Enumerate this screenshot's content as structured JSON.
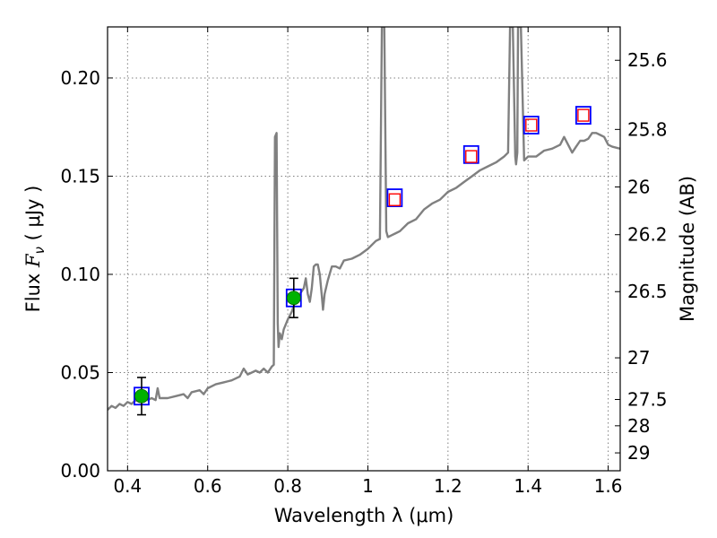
{
  "chart_data": {
    "type": "line",
    "xlabel": "Wavelength  λ (μm)",
    "ylabel": "Flux  F_ν  ( μJy )",
    "ylabel_parts": {
      "prefix": "Flux  ",
      "symbol": "F",
      "subscript": "ν",
      "unit": "  ( μJy )"
    },
    "y2label": "Magnitude (AB)",
    "xlim": [
      0.35,
      1.63
    ],
    "ylim": [
      0.0,
      0.226
    ],
    "grid": true,
    "x_ticks": [
      {
        "value": 0.4,
        "label": "0.4"
      },
      {
        "value": 0.6,
        "label": "0.6"
      },
      {
        "value": 0.8,
        "label": "0.8"
      },
      {
        "value": 1.0,
        "label": "1"
      },
      {
        "value": 1.2,
        "label": "1.2"
      },
      {
        "value": 1.4,
        "label": "1.4"
      },
      {
        "value": 1.6,
        "label": "1.6"
      }
    ],
    "y_ticks": [
      {
        "value": 0.0,
        "label": "0.00"
      },
      {
        "value": 0.05,
        "label": "0.05"
      },
      {
        "value": 0.1,
        "label": "0.10"
      },
      {
        "value": 0.15,
        "label": "0.15"
      },
      {
        "value": 0.2,
        "label": "0.20"
      }
    ],
    "y2_ticks": [
      {
        "flux": 0.209,
        "label": "25.6"
      },
      {
        "flux": 0.1738,
        "label": "25.8"
      },
      {
        "flux": 0.1445,
        "label": "26"
      },
      {
        "flux": 0.1202,
        "label": "26.2"
      },
      {
        "flux": 0.0912,
        "label": "26.5"
      },
      {
        "flux": 0.0575,
        "label": "27"
      },
      {
        "flux": 0.0363,
        "label": "27.5"
      },
      {
        "flux": 0.0229,
        "label": "28"
      },
      {
        "flux": 0.0091,
        "label": "29"
      }
    ],
    "colors": {
      "spectrum": "#808080",
      "box": "#0000ff",
      "inner_box": "#ff0000",
      "detection": "#00b200",
      "errorbar": "#000000",
      "grid": "#7f7f7f"
    },
    "series": [
      {
        "kind": "spectrum",
        "points": [
          [
            0.35,
            0.031
          ],
          [
            0.36,
            0.033
          ],
          [
            0.37,
            0.032
          ],
          [
            0.38,
            0.034
          ],
          [
            0.39,
            0.033
          ],
          [
            0.4,
            0.035
          ],
          [
            0.41,
            0.034
          ],
          [
            0.42,
            0.036
          ],
          [
            0.43,
            0.035
          ],
          [
            0.44,
            0.037
          ],
          [
            0.45,
            0.036
          ],
          [
            0.46,
            0.037
          ],
          [
            0.47,
            0.036
          ],
          [
            0.475,
            0.042
          ],
          [
            0.48,
            0.037
          ],
          [
            0.5,
            0.037
          ],
          [
            0.52,
            0.038
          ],
          [
            0.54,
            0.039
          ],
          [
            0.55,
            0.037
          ],
          [
            0.56,
            0.04
          ],
          [
            0.58,
            0.041
          ],
          [
            0.59,
            0.039
          ],
          [
            0.6,
            0.042
          ],
          [
            0.62,
            0.044
          ],
          [
            0.64,
            0.045
          ],
          [
            0.66,
            0.046
          ],
          [
            0.68,
            0.048
          ],
          [
            0.69,
            0.052
          ],
          [
            0.7,
            0.049
          ],
          [
            0.71,
            0.05
          ],
          [
            0.72,
            0.051
          ],
          [
            0.73,
            0.05
          ],
          [
            0.74,
            0.052
          ],
          [
            0.75,
            0.05
          ],
          [
            0.76,
            0.053
          ],
          [
            0.765,
            0.054
          ],
          [
            0.768,
            0.17
          ],
          [
            0.772,
            0.172
          ],
          [
            0.775,
            0.075
          ],
          [
            0.777,
            0.063
          ],
          [
            0.78,
            0.07
          ],
          [
            0.785,
            0.067
          ],
          [
            0.79,
            0.072
          ],
          [
            0.8,
            0.077
          ],
          [
            0.81,
            0.081
          ],
          [
            0.82,
            0.087
          ],
          [
            0.83,
            0.09
          ],
          [
            0.84,
            0.093
          ],
          [
            0.845,
            0.098
          ],
          [
            0.85,
            0.09
          ],
          [
            0.855,
            0.086
          ],
          [
            0.86,
            0.093
          ],
          [
            0.865,
            0.104
          ],
          [
            0.87,
            0.105
          ],
          [
            0.875,
            0.105
          ],
          [
            0.88,
            0.1
          ],
          [
            0.885,
            0.089
          ],
          [
            0.888,
            0.082
          ],
          [
            0.892,
            0.09
          ],
          [
            0.9,
            0.097
          ],
          [
            0.91,
            0.104
          ],
          [
            0.92,
            0.104
          ],
          [
            0.93,
            0.103
          ],
          [
            0.94,
            0.107
          ],
          [
            0.96,
            0.108
          ],
          [
            0.98,
            0.11
          ],
          [
            1.0,
            0.113
          ],
          [
            1.02,
            0.117
          ],
          [
            1.03,
            0.118
          ],
          [
            1.035,
            0.226
          ],
          [
            1.041,
            0.226
          ],
          [
            1.046,
            0.122
          ],
          [
            1.05,
            0.119
          ],
          [
            1.06,
            0.12
          ],
          [
            1.07,
            0.121
          ],
          [
            1.08,
            0.122
          ],
          [
            1.1,
            0.126
          ],
          [
            1.12,
            0.128
          ],
          [
            1.14,
            0.133
          ],
          [
            1.16,
            0.136
          ],
          [
            1.18,
            0.138
          ],
          [
            1.2,
            0.142
          ],
          [
            1.22,
            0.144
          ],
          [
            1.24,
            0.147
          ],
          [
            1.26,
            0.15
          ],
          [
            1.28,
            0.153
          ],
          [
            1.3,
            0.155
          ],
          [
            1.32,
            0.157
          ],
          [
            1.34,
            0.16
          ],
          [
            1.35,
            0.162
          ],
          [
            1.355,
            0.226
          ],
          [
            1.362,
            0.226
          ],
          [
            1.368,
            0.16
          ],
          [
            1.37,
            0.156
          ],
          [
            1.373,
            0.162
          ],
          [
            1.375,
            0.226
          ],
          [
            1.382,
            0.226
          ],
          [
            1.39,
            0.158
          ],
          [
            1.4,
            0.16
          ],
          [
            1.42,
            0.16
          ],
          [
            1.44,
            0.163
          ],
          [
            1.46,
            0.164
          ],
          [
            1.48,
            0.166
          ],
          [
            1.49,
            0.17
          ],
          [
            1.5,
            0.166
          ],
          [
            1.51,
            0.162
          ],
          [
            1.52,
            0.165
          ],
          [
            1.53,
            0.168
          ],
          [
            1.54,
            0.168
          ],
          [
            1.55,
            0.169
          ],
          [
            1.56,
            0.172
          ],
          [
            1.57,
            0.172
          ],
          [
            1.58,
            0.171
          ],
          [
            1.59,
            0.17
          ],
          [
            1.6,
            0.166
          ],
          [
            1.61,
            0.165
          ],
          [
            1.63,
            0.164
          ]
        ]
      },
      {
        "kind": "detections",
        "points": [
          {
            "x": 0.435,
            "y": 0.038,
            "yerr": 0.0095
          },
          {
            "x": 0.815,
            "y": 0.088,
            "yerr": 0.01
          }
        ]
      },
      {
        "kind": "model_boxes",
        "points": [
          {
            "x": 0.435,
            "y": 0.038
          },
          {
            "x": 0.815,
            "y": 0.088
          },
          {
            "x": 1.067,
            "y": 0.139
          },
          {
            "x": 1.258,
            "y": 0.161
          },
          {
            "x": 1.408,
            "y": 0.176
          },
          {
            "x": 1.538,
            "y": 0.181
          }
        ]
      },
      {
        "kind": "inner_boxes",
        "points": [
          {
            "x": 1.067,
            "y": 0.138
          },
          {
            "x": 1.258,
            "y": 0.16
          },
          {
            "x": 1.408,
            "y": 0.176
          },
          {
            "x": 1.538,
            "y": 0.181
          }
        ]
      }
    ]
  }
}
